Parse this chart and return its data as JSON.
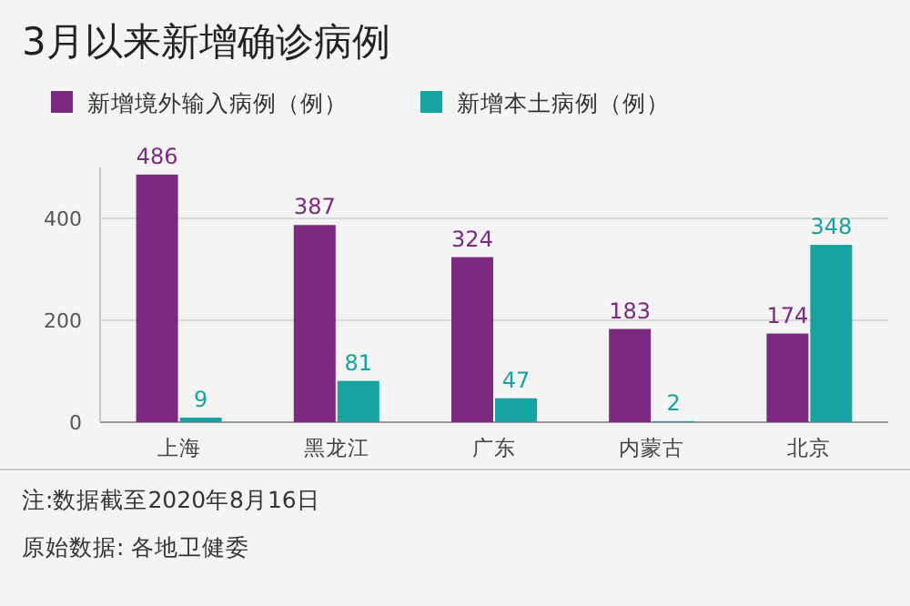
{
  "chart_data": {
    "type": "bar",
    "title": "3月以来新增确诊病例",
    "categories": [
      "上海",
      "黑龙江",
      "广东",
      "内蒙古",
      "北京"
    ],
    "series": [
      {
        "name": "新增境外输入病例（例）",
        "color": "#7b2a80",
        "values": [
          486,
          387,
          324,
          183,
          174
        ]
      },
      {
        "name": "新增本土病例（例）",
        "color": "#16a3a0",
        "values": [
          9,
          81,
          47,
          2,
          348
        ]
      }
    ],
    "ylim": [
      0,
      500
    ],
    "yticks": [
      0,
      200,
      400
    ],
    "grid": "y",
    "legend": "top",
    "data_labels": true,
    "annotations": [
      "注:数据截至2020年8月16日",
      "原始数据: 各地卫健委"
    ]
  }
}
